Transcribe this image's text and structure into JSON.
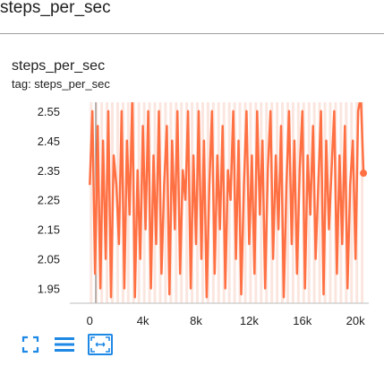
{
  "header": {
    "title": "steps_per_sec"
  },
  "card": {
    "title": "steps_per_sec",
    "tag": "tag: steps_per_sec"
  },
  "colors": {
    "line": "#ff7043",
    "band": "#fbe3dc",
    "axis": "#757575",
    "grid": "#e0e0e0"
  },
  "toolbar": {
    "icons": [
      "fullscreen-icon",
      "legend-toggle-icon",
      "fit-domain-icon"
    ]
  },
  "chart_data": {
    "type": "line",
    "title": "",
    "xlabel": "",
    "ylabel": "",
    "xlim": [
      -1500,
      21000
    ],
    "ylim": [
      1.9,
      2.58
    ],
    "xticks": [
      0,
      4000,
      8000,
      12000,
      16000,
      20000
    ],
    "xtick_labels": [
      "0",
      "4k",
      "8k",
      "12k",
      "16k",
      "20k"
    ],
    "yticks": [
      1.95,
      2.05,
      2.15,
      2.25,
      2.35,
      2.45,
      2.55
    ],
    "ytick_labels": [
      "1.95",
      "2.05",
      "2.15",
      "2.25",
      "2.35",
      "2.45",
      "2.55"
    ],
    "series": [
      {
        "x": [
          0,
          200,
          400,
          600,
          800,
          1000,
          1200,
          1400,
          1600,
          1800,
          2000,
          2200,
          2400,
          2600,
          2800,
          3000,
          3200,
          3400,
          3600,
          3800,
          4000,
          4200,
          4400,
          4600,
          4800,
          5000,
          5200,
          5400,
          5600,
          5800,
          6000,
          6200,
          6400,
          6600,
          6800,
          7000,
          7200,
          7400,
          7600,
          7800,
          8000,
          8200,
          8400,
          8600,
          8800,
          9000,
          9200,
          9400,
          9600,
          9800,
          10000,
          10200,
          10400,
          10600,
          10800,
          11000,
          11200,
          11400,
          11600,
          11800,
          12000,
          12200,
          12400,
          12600,
          12800,
          13000,
          13200,
          13400,
          13600,
          13800,
          14000,
          14200,
          14400,
          14600,
          14800,
          15000,
          15200,
          15400,
          15600,
          15800,
          16000,
          16200,
          16400,
          16600,
          16800,
          17000,
          17200,
          17400,
          17600,
          17800,
          18000,
          18200,
          18400,
          18600,
          18800,
          19000,
          19200,
          19400,
          19600,
          19800,
          20000,
          20200,
          20400,
          20600
        ],
        "y": [
          2.3,
          2.55,
          2.0,
          2.5,
          1.95,
          2.45,
          2.05,
          2.55,
          1.92,
          2.4,
          2.3,
          2.1,
          2.55,
          1.95,
          2.45,
          2.2,
          2.6,
          1.92,
          2.35,
          2.05,
          2.5,
          2.15,
          2.55,
          1.95,
          2.4,
          2.1,
          2.55,
          2.0,
          2.3,
          2.5,
          1.93,
          2.45,
          2.15,
          2.55,
          2.0,
          2.35,
          2.25,
          2.55,
          1.95,
          2.4,
          2.1,
          2.55,
          2.05,
          2.45,
          1.92,
          2.3,
          2.55,
          2.0,
          2.4,
          2.15,
          2.5,
          1.95,
          2.35,
          2.25,
          2.55,
          2.05,
          2.45,
          1.93,
          2.3,
          2.55,
          2.1,
          2.4,
          2.0,
          2.55,
          2.2,
          2.45,
          1.95,
          2.35,
          2.55,
          2.05,
          2.4,
          2.15,
          2.5,
          1.92,
          2.3,
          2.55,
          2.1,
          2.45,
          2.0,
          2.35,
          2.55,
          1.95,
          2.4,
          2.2,
          2.5,
          2.05,
          2.3,
          2.55,
          1.93,
          2.45,
          2.15,
          2.35,
          2.55,
          2.0,
          2.4,
          2.1,
          2.5,
          1.95,
          2.3,
          2.45,
          2.05,
          2.55,
          2.6,
          2.34
        ]
      }
    ],
    "grid": false,
    "legend": "none"
  }
}
